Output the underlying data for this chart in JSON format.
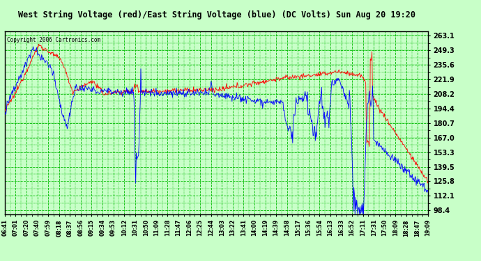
{
  "title": "West String Voltage (red)/East String Voltage (blue) (DC Volts) Sun Aug 20 19:20",
  "copyright": "Copyright 2006 Cartronics.com",
  "ylabel_ticks": [
    98.4,
    112.1,
    125.8,
    139.5,
    153.3,
    167.0,
    180.7,
    194.4,
    208.2,
    221.9,
    235.6,
    249.3,
    263.1
  ],
  "ylim": [
    95,
    267
  ],
  "background_color": "#c8ffc8",
  "plot_bg": "#c8ffc8",
  "grid_color": "#00bb00",
  "line_color_red": "red",
  "line_color_blue": "blue",
  "x_labels": [
    "06:41",
    "07:01",
    "07:20",
    "07:40",
    "07:59",
    "08:18",
    "08:37",
    "08:56",
    "09:15",
    "09:34",
    "09:53",
    "10:12",
    "10:31",
    "10:50",
    "11:09",
    "11:28",
    "11:47",
    "12:06",
    "12:25",
    "12:44",
    "13:03",
    "13:22",
    "13:41",
    "14:00",
    "14:19",
    "14:39",
    "14:58",
    "15:17",
    "15:36",
    "15:54",
    "16:13",
    "16:33",
    "16:52",
    "17:11",
    "17:31",
    "17:50",
    "18:09",
    "18:28",
    "18:47",
    "19:09"
  ],
  "figwidth": 6.9,
  "figheight": 3.75,
  "dpi": 100
}
